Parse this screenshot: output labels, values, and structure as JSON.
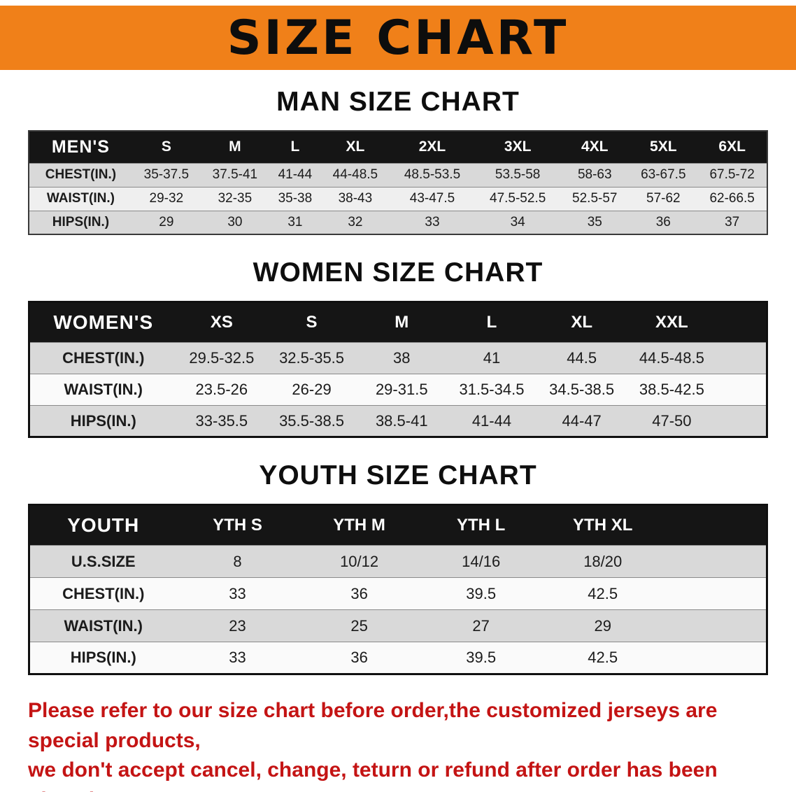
{
  "banner": {
    "title": "SIZE CHART"
  },
  "colors": {
    "banner_bg": "#F08019",
    "table_header_bg": "#151515",
    "row_stripe": "#D9D9D9",
    "disclaimer_red": "#C41414"
  },
  "sections": [
    {
      "heading": "MAN SIZE CHART",
      "table": {
        "header": [
          "MEN'S",
          "S",
          "M",
          "L",
          "XL",
          "2XL",
          "3XL",
          "4XL",
          "5XL",
          "6XL"
        ],
        "rows": [
          [
            "CHEST(IN.)",
            "35-37.5",
            "37.5-41",
            "41-44",
            "44-48.5",
            "48.5-53.5",
            "53.5-58",
            "58-63",
            "63-67.5",
            "67.5-72"
          ],
          [
            "WAIST(IN.)",
            "29-32",
            "32-35",
            "35-38",
            "38-43",
            "43-47.5",
            "47.5-52.5",
            "52.5-57",
            "57-62",
            "62-66.5"
          ],
          [
            "HIPS(IN.)",
            "29",
            "30",
            "31",
            "32",
            "33",
            "34",
            "35",
            "36",
            "37"
          ]
        ]
      }
    },
    {
      "heading": "WOMEN SIZE CHART",
      "table": {
        "header": [
          "WOMEN'S",
          "XS",
          "S",
          "M",
          "L",
          "XL",
          "XXL"
        ],
        "rows": [
          [
            "CHEST(IN.)",
            "29.5-32.5",
            "32.5-35.5",
            "38",
            "41",
            "44.5",
            "44.5-48.5"
          ],
          [
            "WAIST(IN.)",
            "23.5-26",
            "26-29",
            "29-31.5",
            "31.5-34.5",
            "34.5-38.5",
            "38.5-42.5"
          ],
          [
            "HIPS(IN.)",
            "33-35.5",
            "35.5-38.5",
            "38.5-41",
            "41-44",
            "44-47",
            "47-50"
          ]
        ]
      }
    },
    {
      "heading": "YOUTH SIZE CHART",
      "table": {
        "header": [
          "YOUTH",
          "YTH S",
          "YTH M",
          "YTH L",
          "YTH XL"
        ],
        "rows": [
          [
            "U.S.SIZE",
            "8",
            "10/12",
            "14/16",
            "18/20"
          ],
          [
            "CHEST(IN.)",
            "33",
            "36",
            "39.5",
            "42.5"
          ],
          [
            "WAIST(IN.)",
            "23",
            "25",
            "27",
            "29"
          ],
          [
            "HIPS(IN.)",
            "33",
            "36",
            "39.5",
            "42.5"
          ]
        ]
      }
    }
  ],
  "disclaimer": {
    "line1": "Please refer to our size chart before order,the customized jerseys are special products,",
    "line2": "we don't accept cancel, change, teturn or refund after order has been placed!"
  }
}
